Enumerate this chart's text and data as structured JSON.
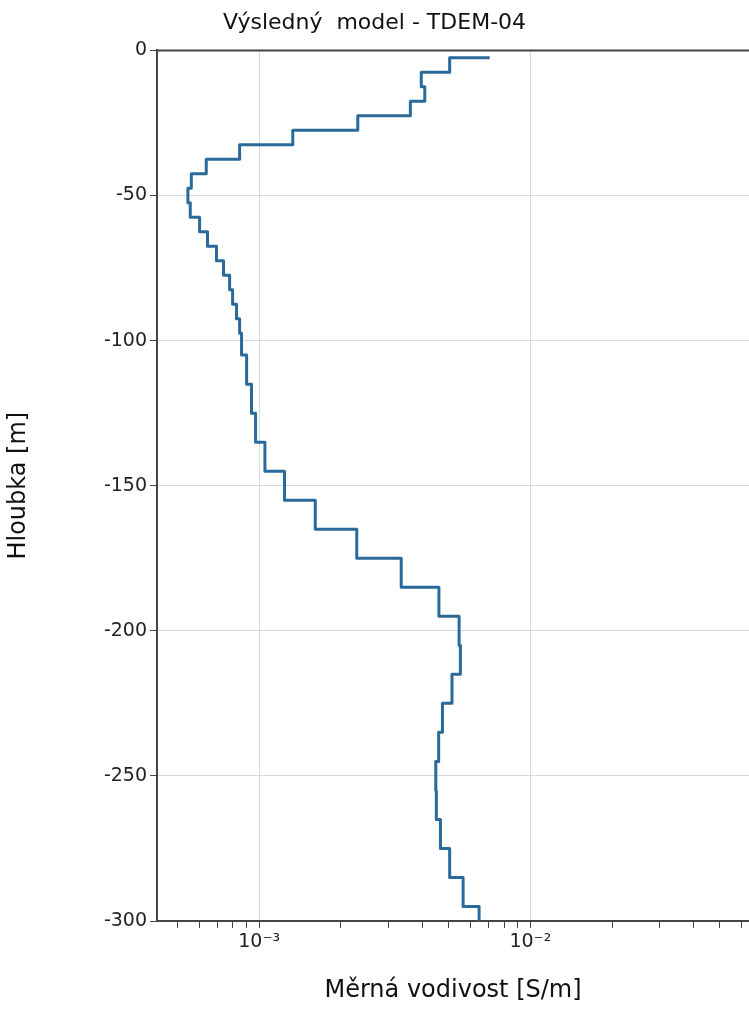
{
  "chart_data": {
    "type": "step",
    "title": "Výsledný  model - TDEM-04",
    "xlabel": "Měrná vodivost [S/m]",
    "ylabel": "Hloubka [m]",
    "log": "x",
    "grid": true,
    "xlim": [
      0.00042,
      0.064
    ],
    "xticks": [
      {
        "value": 0.0005,
        "label": null
      },
      {
        "value": 0.0006,
        "label": null
      },
      {
        "value": 0.0007,
        "label": null
      },
      {
        "value": 0.0008,
        "label": null
      },
      {
        "value": 0.0009,
        "label": null
      },
      {
        "value": 0.001,
        "label": "10⁻³"
      },
      {
        "value": 0.002,
        "label": null
      },
      {
        "value": 0.003,
        "label": null
      },
      {
        "value": 0.004,
        "label": null
      },
      {
        "value": 0.005,
        "label": null
      },
      {
        "value": 0.006,
        "label": null
      },
      {
        "value": 0.007,
        "label": null
      },
      {
        "value": 0.008,
        "label": null
      },
      {
        "value": 0.009,
        "label": null
      },
      {
        "value": 0.01,
        "label": "10⁻²"
      },
      {
        "value": 0.02,
        "label": null
      },
      {
        "value": 0.03,
        "label": null
      },
      {
        "value": 0.04,
        "label": null
      },
      {
        "value": 0.05,
        "label": null
      },
      {
        "value": 0.06,
        "label": null
      }
    ],
    "ylim": [
      -300,
      0
    ],
    "yticks": [
      0,
      -50,
      -100,
      -150,
      -200,
      -250,
      -300
    ],
    "series": [
      {
        "color": "#2a6a9a",
        "x": [
          0.00708,
          0.00504,
          0.00396,
          0.00408,
          0.00361,
          0.00231,
          0.00133,
          0.000847,
          0.000638,
          0.000562,
          0.000546,
          0.000557,
          0.000603,
          0.000645,
          0.000696,
          0.000739,
          0.000778,
          0.000798,
          0.000825,
          0.000847,
          0.000861,
          0.000899,
          0.000937,
          0.00097,
          0.00105,
          0.00124,
          0.00161,
          0.00229,
          0.00334,
          0.0046,
          0.00546,
          0.00552,
          0.00514,
          0.00474,
          0.00459,
          0.00448,
          0.0045,
          0.00466,
          0.00504,
          0.00565,
          0.00647,
          0.00647
        ],
        "values": [
          -2.5,
          -2.5,
          -7.5,
          -12.5,
          -17.5,
          -22.5,
          -27.5,
          -32.5,
          -37.5,
          -42.5,
          -47.5,
          -52.5,
          -57.5,
          -62.5,
          -67.5,
          -72.5,
          -77.5,
          -82.5,
          -87.5,
          -92.5,
          -97.5,
          -105,
          -115,
          -125,
          -135,
          -145,
          -155,
          -165,
          -175,
          -185,
          -195,
          -205,
          -215,
          -225,
          -235,
          -245,
          -255,
          -265,
          -275,
          -285,
          -295,
          -300
        ]
      }
    ]
  }
}
